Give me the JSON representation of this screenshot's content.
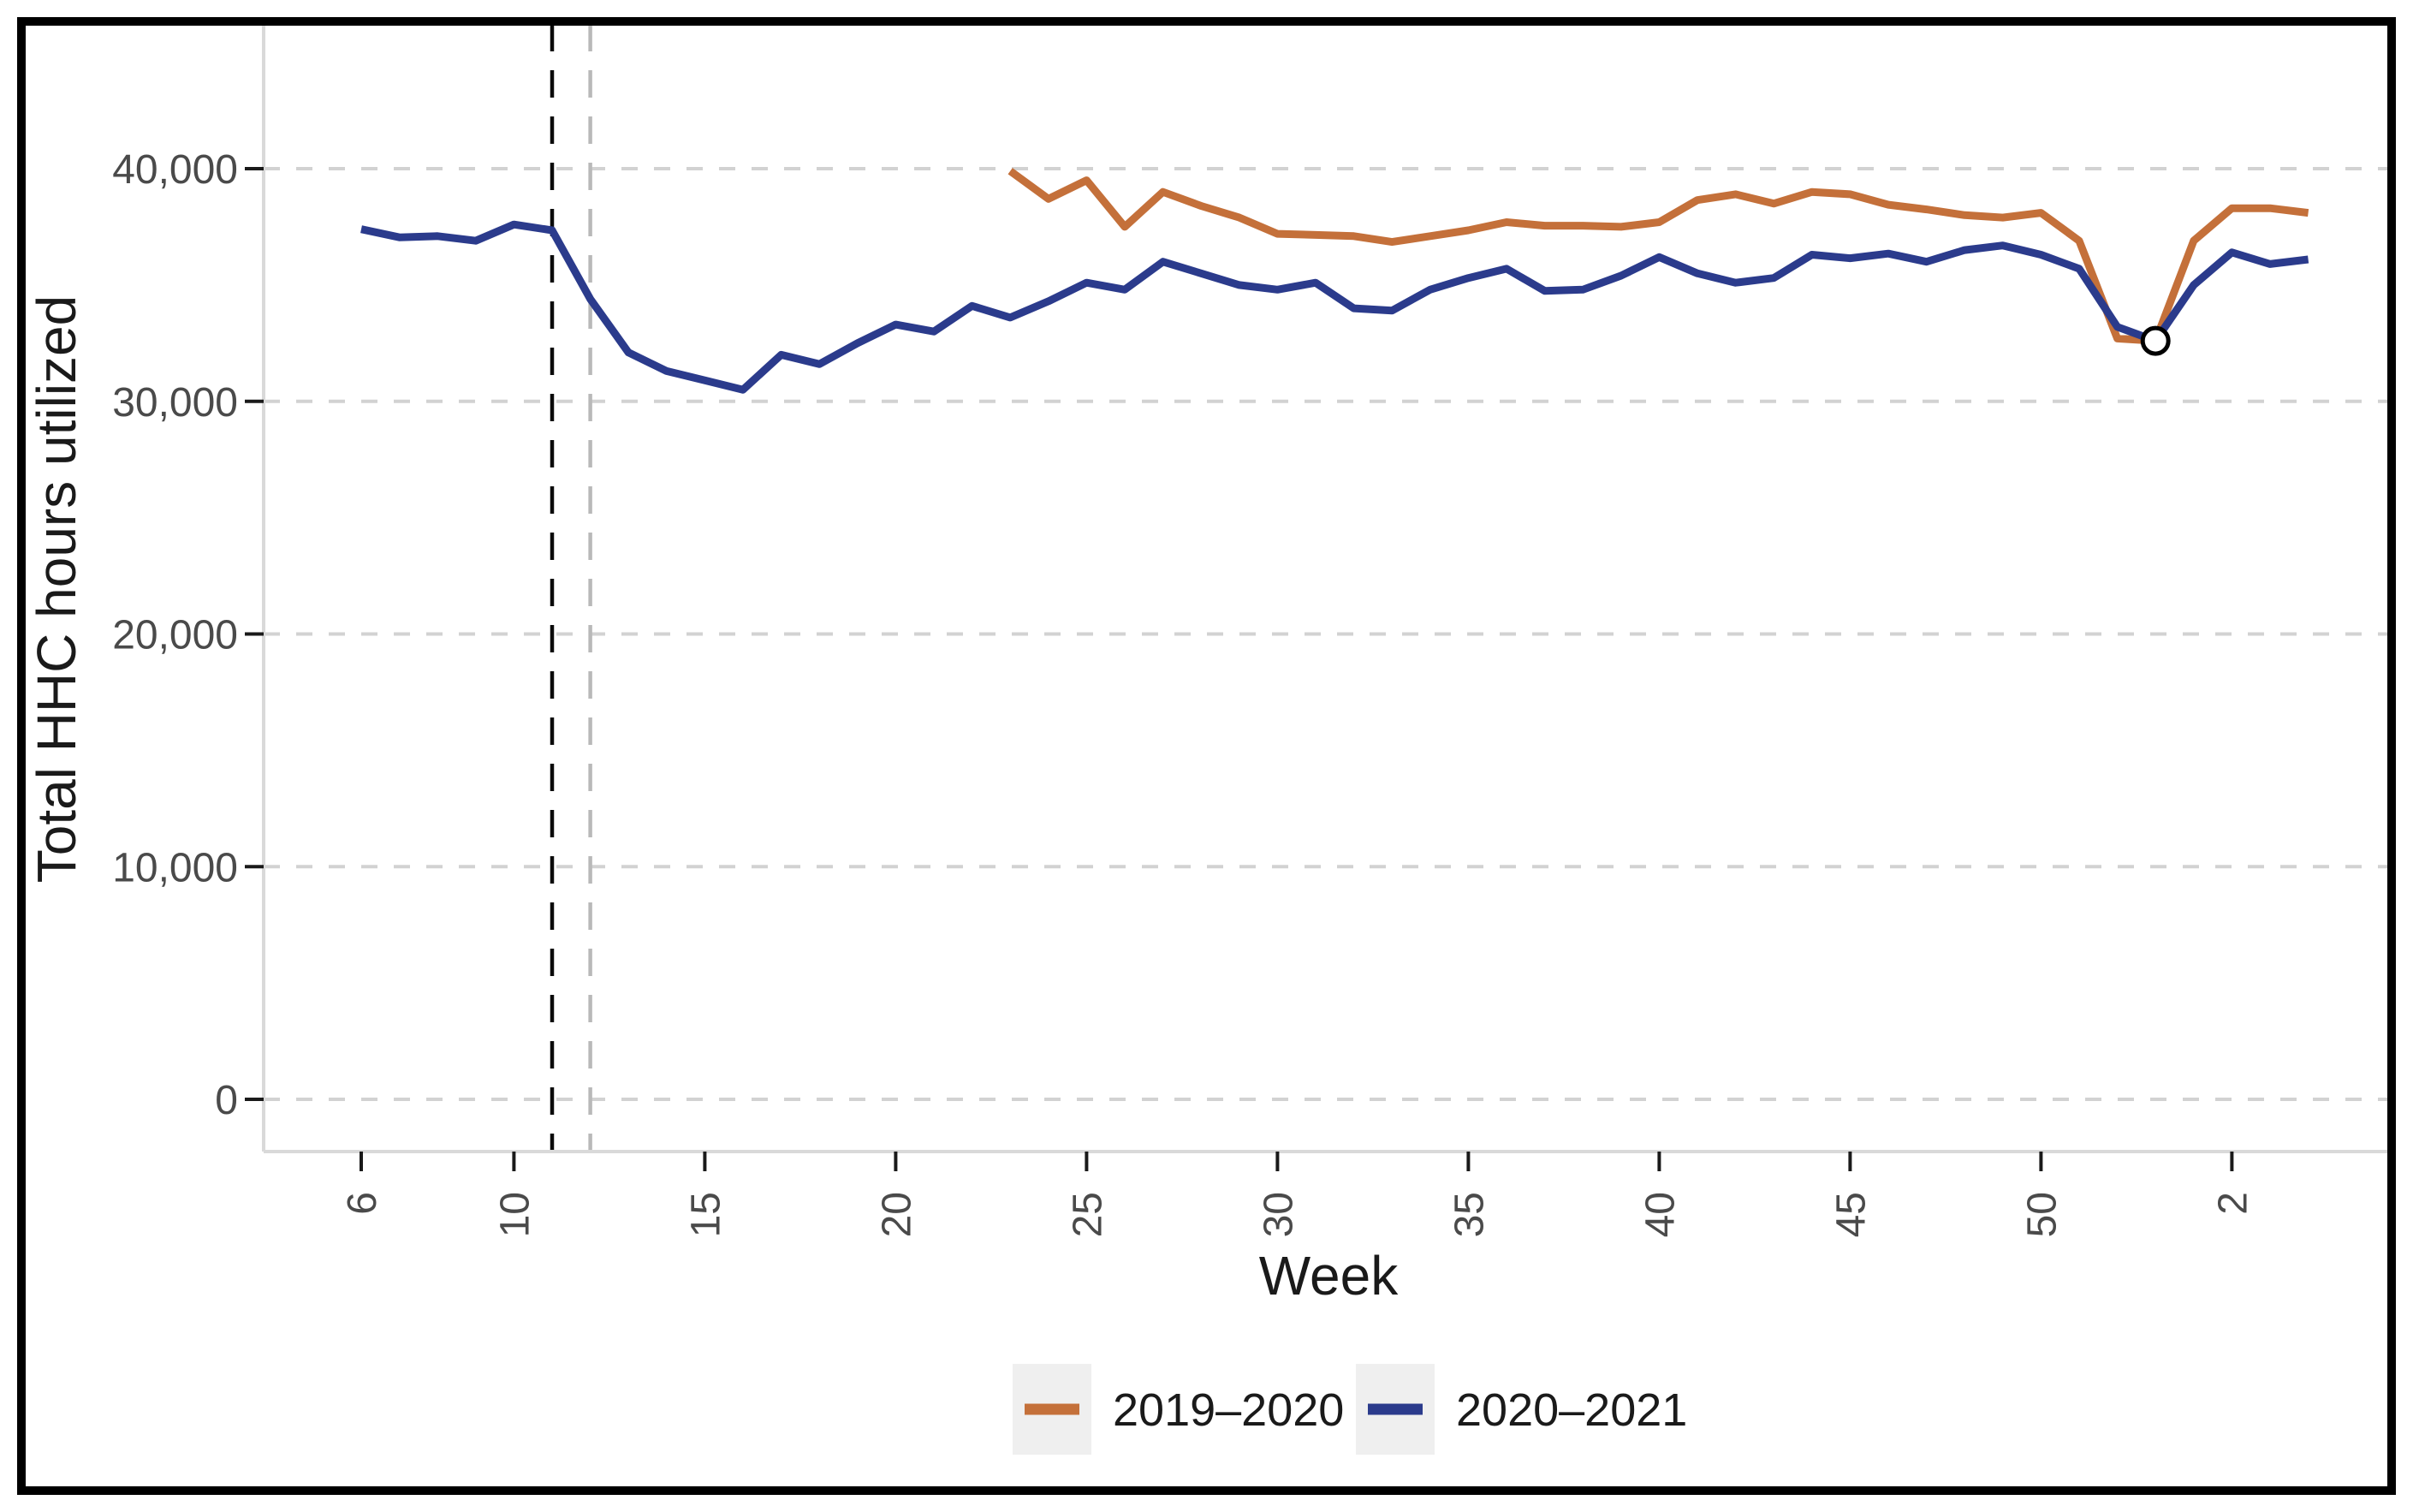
{
  "figure": {
    "border_color": "#000000",
    "background": "#ffffff"
  },
  "chart_data": {
    "type": "line",
    "xlabel": "Week",
    "ylabel": "Total HHC hours utilized",
    "grid": "horizontal-dashed",
    "legend_position": "bottom",
    "legend_key_background": "#efefef",
    "axis_line_color": "#d9d9d9",
    "gridline_color": "#d2d2d2",
    "tick_color": "#1a1a1a",
    "ylim": [
      0,
      46500
    ],
    "x_week_span": [
      6,
      57
    ],
    "y_ticks": [
      {
        "value": 0,
        "label": "0"
      },
      {
        "value": 10000,
        "label": "10,000"
      },
      {
        "value": 20000,
        "label": "20,000"
      },
      {
        "value": 30000,
        "label": "30,000"
      },
      {
        "value": 40000,
        "label": "40,000"
      }
    ],
    "x_ticks": [
      {
        "week": 6,
        "label": "6"
      },
      {
        "week": 10,
        "label": "10"
      },
      {
        "week": 15,
        "label": "15"
      },
      {
        "week": 20,
        "label": "20"
      },
      {
        "week": 25,
        "label": "25"
      },
      {
        "week": 30,
        "label": "30"
      },
      {
        "week": 35,
        "label": "35"
      },
      {
        "week": 40,
        "label": "40"
      },
      {
        "week": 45,
        "label": "45"
      },
      {
        "week": 50,
        "label": "50"
      },
      {
        "week": 55,
        "label": "2"
      }
    ],
    "series": [
      {
        "name": "2019–2020",
        "color": "#c4703a",
        "start_week": 23,
        "values": [
          39900,
          38700,
          39500,
          37500,
          39000,
          38400,
          37900,
          37200,
          37150,
          37100,
          36850,
          37100,
          37350,
          37700,
          37550,
          37550,
          37500,
          37700,
          38650,
          38900,
          38500,
          39000,
          38900,
          38450,
          38250,
          38000,
          37900,
          38100,
          36900,
          32700,
          32600,
          36900,
          38300,
          38300,
          38100
        ]
      },
      {
        "name": "2020–2021",
        "color": "#2b3b8c",
        "start_week": 6,
        "values": [
          37400,
          37050,
          37100,
          36900,
          37600,
          37350,
          34400,
          32100,
          31300,
          30900,
          30500,
          32000,
          31600,
          32500,
          33300,
          33000,
          34100,
          33600,
          34300,
          35100,
          34800,
          36000,
          35500,
          35000,
          34800,
          35100,
          34000,
          33900,
          34800,
          35300,
          35700,
          34750,
          34800,
          35400,
          36200,
          35500,
          35100,
          35300,
          36300,
          36150,
          36350,
          36000,
          36500,
          36700,
          36300,
          35700,
          33200,
          32600,
          35000,
          36400,
          35900,
          36100
        ]
      }
    ],
    "vlines": [
      {
        "week": 11,
        "color": "#0a0a0a",
        "style": "dashed"
      },
      {
        "week": 12,
        "color": "#b9b9b9",
        "style": "dashed"
      }
    ],
    "marker": {
      "series": "2020–2021",
      "week": 53,
      "value": 32600,
      "shape": "open-circle",
      "fill": "#ffffff",
      "stroke": "#000000"
    }
  }
}
